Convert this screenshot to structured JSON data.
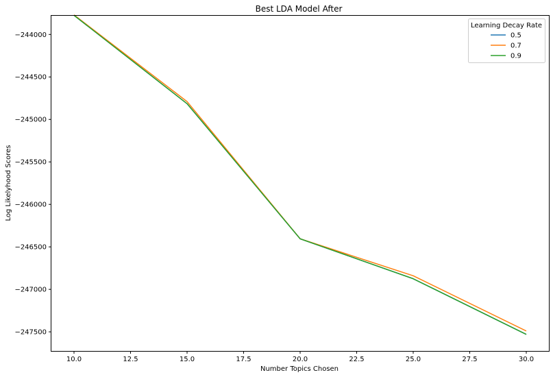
{
  "chart_data": {
    "type": "line",
    "title": "Best LDA Model After",
    "xlabel": "Number Topics Chosen",
    "ylabel": "Log Likelyhood Scores",
    "x": [
      10,
      15,
      20,
      25,
      30
    ],
    "xlim": [
      9,
      31
    ],
    "ylim": [
      -247725,
      -243780
    ],
    "xticks": [
      10.0,
      12.5,
      15.0,
      17.5,
      20.0,
      22.5,
      25.0,
      27.5,
      30.0
    ],
    "xtick_labels": [
      "10.0",
      "12.5",
      "15.0",
      "17.5",
      "20.0",
      "22.5",
      "25.0",
      "27.5",
      "30.0"
    ],
    "yticks": [
      -244000,
      -244500,
      -245000,
      -245500,
      -246000,
      -246500,
      -247000,
      -247500
    ],
    "ytick_labels": [
      "−244000",
      "−244500",
      "−245000",
      "−245500",
      "−246000",
      "−246500",
      "−247000",
      "−247500"
    ],
    "grid": false,
    "legend": {
      "title": "Learning Decay Rate",
      "placement": "top-right"
    },
    "series": [
      {
        "name": "0.5",
        "color": "#1f77b4",
        "values": [
          -243775,
          -244815,
          -246405,
          -246875,
          -247530
        ]
      },
      {
        "name": "0.7",
        "color": "#ff7f0e",
        "values": [
          -243770,
          -244790,
          -246405,
          -246840,
          -247490
        ]
      },
      {
        "name": "0.9",
        "color": "#2ca02c",
        "values": [
          -243775,
          -244815,
          -246405,
          -246875,
          -247530
        ]
      }
    ]
  }
}
